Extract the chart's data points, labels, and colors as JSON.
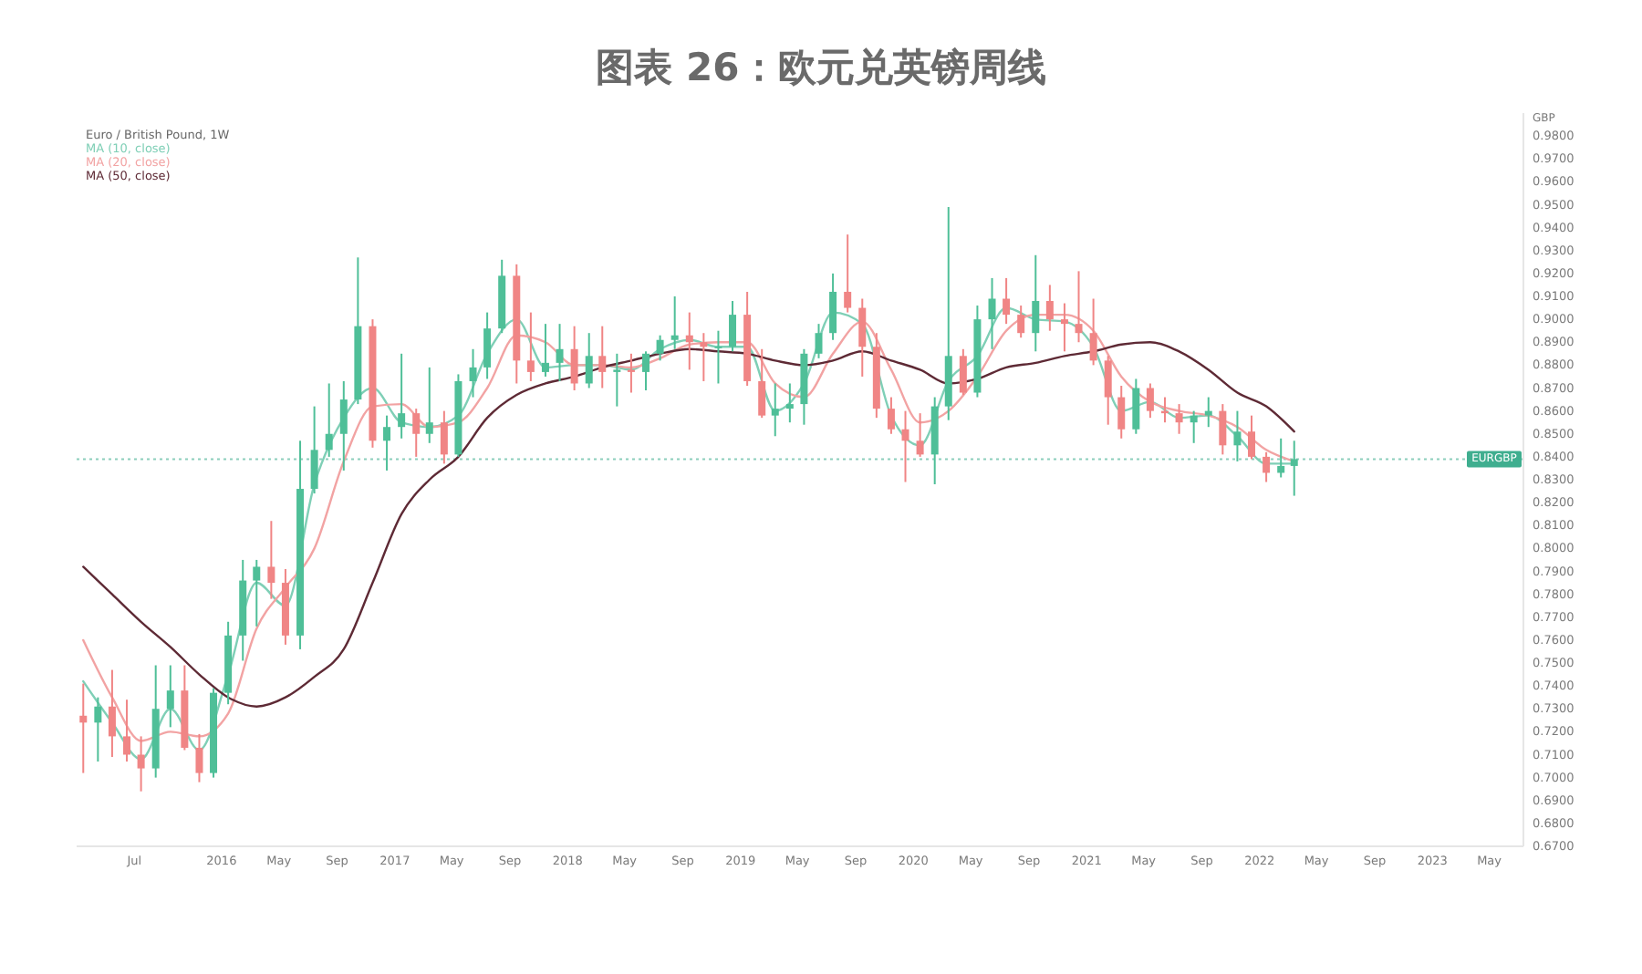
{
  "chart_data": {
    "type": "candlestick",
    "title": "图表 26：欧元兑英镑周线",
    "subtitle": "Euro / British Pound, 1W",
    "ylabel": "GBP",
    "x": [
      "2015-03-15",
      "2015-04-15",
      "2015-05-15",
      "2015-06-15",
      "2015-07-15",
      "2015-08-15",
      "2015-09-15",
      "2015-10-15",
      "2015-11-15",
      "2015-12-15",
      "2016-01-15",
      "2016-02-15",
      "2016-03-15",
      "2016-04-15",
      "2016-05-15",
      "2016-06-15",
      "2016-07-15",
      "2016-08-15",
      "2016-09-15",
      "2016-10-15",
      "2016-11-15",
      "2016-12-15",
      "2017-01-15",
      "2017-02-15",
      "2017-03-15",
      "2017-04-15",
      "2017-05-15",
      "2017-06-15",
      "2017-07-15",
      "2017-08-15",
      "2017-09-15",
      "2017-10-15",
      "2017-11-15",
      "2017-12-15",
      "2018-01-15",
      "2018-02-15",
      "2018-03-15",
      "2018-04-15",
      "2018-05-15",
      "2018-06-15",
      "2018-07-15",
      "2018-08-15",
      "2018-09-15",
      "2018-10-15",
      "2018-11-15",
      "2018-12-15",
      "2019-01-15",
      "2019-02-15",
      "2019-03-15",
      "2019-04-15",
      "2019-05-15",
      "2019-06-15",
      "2019-07-15",
      "2019-08-15",
      "2019-09-15",
      "2019-10-15",
      "2019-11-15",
      "2019-12-15",
      "2020-01-15",
      "2020-02-15",
      "2020-03-15",
      "2020-04-15",
      "2020-05-15",
      "2020-06-15",
      "2020-07-15",
      "2020-08-15",
      "2020-09-15",
      "2020-10-15",
      "2020-11-15",
      "2020-12-15",
      "2021-01-15",
      "2021-02-15",
      "2021-03-15",
      "2021-04-15",
      "2021-05-15",
      "2021-06-15",
      "2021-07-15",
      "2021-08-15",
      "2021-09-15",
      "2021-10-15",
      "2021-11-15",
      "2021-12-15",
      "2022-01-15",
      "2022-02-15",
      "2022-03-15"
    ],
    "ohlc": [
      [
        0.727,
        0.741,
        0.702,
        0.724
      ],
      [
        0.724,
        0.735,
        0.707,
        0.731
      ],
      [
        0.731,
        0.747,
        0.709,
        0.718
      ],
      [
        0.718,
        0.734,
        0.707,
        0.71
      ],
      [
        0.71,
        0.718,
        0.694,
        0.704
      ],
      [
        0.704,
        0.749,
        0.7,
        0.73
      ],
      [
        0.73,
        0.749,
        0.722,
        0.738
      ],
      [
        0.738,
        0.749,
        0.712,
        0.713
      ],
      [
        0.713,
        0.719,
        0.698,
        0.702
      ],
      [
        0.702,
        0.739,
        0.7,
        0.737
      ],
      [
        0.737,
        0.768,
        0.732,
        0.762
      ],
      [
        0.762,
        0.795,
        0.751,
        0.786
      ],
      [
        0.786,
        0.795,
        0.766,
        0.792
      ],
      [
        0.792,
        0.812,
        0.778,
        0.785
      ],
      [
        0.785,
        0.791,
        0.758,
        0.762
      ],
      [
        0.762,
        0.847,
        0.756,
        0.826
      ],
      [
        0.826,
        0.862,
        0.824,
        0.843
      ],
      [
        0.843,
        0.872,
        0.84,
        0.85
      ],
      [
        0.85,
        0.873,
        0.834,
        0.865
      ],
      [
        0.865,
        0.927,
        0.863,
        0.897
      ],
      [
        0.897,
        0.9,
        0.844,
        0.847
      ],
      [
        0.847,
        0.858,
        0.834,
        0.853
      ],
      [
        0.853,
        0.885,
        0.848,
        0.859
      ],
      [
        0.859,
        0.861,
        0.84,
        0.85
      ],
      [
        0.85,
        0.879,
        0.846,
        0.855
      ],
      [
        0.855,
        0.86,
        0.837,
        0.841
      ],
      [
        0.841,
        0.876,
        0.84,
        0.873
      ],
      [
        0.873,
        0.887,
        0.866,
        0.879
      ],
      [
        0.879,
        0.903,
        0.874,
        0.896
      ],
      [
        0.896,
        0.926,
        0.894,
        0.919
      ],
      [
        0.919,
        0.924,
        0.872,
        0.882
      ],
      [
        0.882,
        0.903,
        0.873,
        0.877
      ],
      [
        0.877,
        0.898,
        0.875,
        0.881
      ],
      [
        0.881,
        0.898,
        0.873,
        0.887
      ],
      [
        0.887,
        0.897,
        0.869,
        0.872
      ],
      [
        0.872,
        0.894,
        0.87,
        0.884
      ],
      [
        0.884,
        0.897,
        0.87,
        0.877
      ],
      [
        0.877,
        0.885,
        0.862,
        0.878
      ],
      [
        0.878,
        0.885,
        0.868,
        0.877
      ],
      [
        0.877,
        0.886,
        0.869,
        0.885
      ],
      [
        0.885,
        0.893,
        0.882,
        0.891
      ],
      [
        0.891,
        0.91,
        0.887,
        0.893
      ],
      [
        0.893,
        0.903,
        0.878,
        0.89
      ],
      [
        0.89,
        0.894,
        0.873,
        0.888
      ],
      [
        0.888,
        0.895,
        0.872,
        0.888
      ],
      [
        0.888,
        0.908,
        0.886,
        0.902
      ],
      [
        0.902,
        0.912,
        0.871,
        0.873
      ],
      [
        0.873,
        0.887,
        0.857,
        0.858
      ],
      [
        0.858,
        0.872,
        0.849,
        0.861
      ],
      [
        0.861,
        0.872,
        0.855,
        0.863
      ],
      [
        0.863,
        0.887,
        0.854,
        0.885
      ],
      [
        0.885,
        0.898,
        0.883,
        0.894
      ],
      [
        0.894,
        0.92,
        0.891,
        0.912
      ],
      [
        0.912,
        0.937,
        0.903,
        0.905
      ],
      [
        0.905,
        0.909,
        0.875,
        0.888
      ],
      [
        0.888,
        0.894,
        0.857,
        0.861
      ],
      [
        0.861,
        0.866,
        0.85,
        0.852
      ],
      [
        0.852,
        0.86,
        0.829,
        0.847
      ],
      [
        0.847,
        0.859,
        0.84,
        0.841
      ],
      [
        0.841,
        0.866,
        0.828,
        0.862
      ],
      [
        0.862,
        0.949,
        0.856,
        0.884
      ],
      [
        0.884,
        0.887,
        0.867,
        0.868
      ],
      [
        0.868,
        0.906,
        0.866,
        0.9
      ],
      [
        0.9,
        0.918,
        0.887,
        0.909
      ],
      [
        0.909,
        0.918,
        0.898,
        0.902
      ],
      [
        0.902,
        0.906,
        0.892,
        0.894
      ],
      [
        0.894,
        0.928,
        0.886,
        0.908
      ],
      [
        0.908,
        0.915,
        0.895,
        0.9
      ],
      [
        0.9,
        0.907,
        0.886,
        0.898
      ],
      [
        0.898,
        0.921,
        0.89,
        0.894
      ],
      [
        0.894,
        0.909,
        0.88,
        0.882
      ],
      [
        0.882,
        0.884,
        0.854,
        0.866
      ],
      [
        0.866,
        0.871,
        0.848,
        0.852
      ],
      [
        0.852,
        0.874,
        0.85,
        0.87
      ],
      [
        0.87,
        0.872,
        0.857,
        0.86
      ],
      [
        0.86,
        0.866,
        0.855,
        0.859
      ],
      [
        0.859,
        0.863,
        0.85,
        0.855
      ],
      [
        0.855,
        0.86,
        0.846,
        0.858
      ],
      [
        0.858,
        0.866,
        0.853,
        0.86
      ],
      [
        0.86,
        0.863,
        0.841,
        0.845
      ],
      [
        0.845,
        0.86,
        0.838,
        0.851
      ],
      [
        0.851,
        0.858,
        0.839,
        0.84
      ],
      [
        0.84,
        0.842,
        0.829,
        0.833
      ],
      [
        0.833,
        0.848,
        0.831,
        0.836
      ],
      [
        0.836,
        0.847,
        0.823,
        0.839
      ]
    ],
    "colors": [
      "#f08585",
      "#4fbf98",
      "#f08585",
      "#f08585",
      "#f08585",
      "#4fbf98",
      "#4fbf98",
      "#f08585",
      "#f08585",
      "#4fbf98",
      "#4fbf98",
      "#4fbf98",
      "#4fbf98",
      "#f08585",
      "#f08585",
      "#4fbf98",
      "#4fbf98",
      "#4fbf98",
      "#4fbf98",
      "#4fbf98",
      "#f08585",
      "#4fbf98",
      "#4fbf98",
      "#f08585",
      "#4fbf98",
      "#f08585",
      "#4fbf98",
      "#4fbf98",
      "#4fbf98",
      "#4fbf98",
      "#f08585",
      "#f08585",
      "#4fbf98",
      "#4fbf98",
      "#f08585",
      "#4fbf98",
      "#f08585",
      "#4fbf98",
      "#f08585",
      "#4fbf98",
      "#4fbf98",
      "#4fbf98",
      "#f08585",
      "#f08585",
      "#4fbf98",
      "#4fbf98",
      "#f08585",
      "#f08585",
      "#4fbf98",
      "#4fbf98",
      "#4fbf98",
      "#4fbf98",
      "#4fbf98",
      "#f08585",
      "#f08585",
      "#f08585",
      "#f08585",
      "#f08585",
      "#f08585",
      "#4fbf98",
      "#4fbf98",
      "#f08585",
      "#4fbf98",
      "#4fbf98",
      "#f08585",
      "#f08585",
      "#4fbf98",
      "#f08585",
      "#f08585",
      "#f08585",
      "#f08585",
      "#f08585",
      "#f08585",
      "#4fbf98",
      "#f08585",
      "#f08585",
      "#f08585",
      "#4fbf98",
      "#4fbf98",
      "#f08585",
      "#4fbf98",
      "#f08585",
      "#f08585",
      "#4fbf98",
      "#4fbf98"
    ],
    "series": [
      {
        "name": "MA (10, close)",
        "type": "line",
        "color": "#7fcfb6",
        "x": [
          "2015-03-15",
          "2015-05-15",
          "2015-07-15",
          "2015-09-15",
          "2015-11-15",
          "2016-01-15",
          "2016-03-15",
          "2016-05-15",
          "2016-07-15",
          "2016-09-15",
          "2016-11-15",
          "2017-01-15",
          "2017-03-15",
          "2017-05-15",
          "2017-07-15",
          "2017-09-15",
          "2017-11-15",
          "2018-01-15",
          "2018-03-15",
          "2018-05-15",
          "2018-07-15",
          "2018-09-15",
          "2018-11-15",
          "2019-01-15",
          "2019-03-15",
          "2019-05-15",
          "2019-07-15",
          "2019-09-15",
          "2019-11-15",
          "2020-01-15",
          "2020-03-15",
          "2020-05-15",
          "2020-07-15",
          "2020-09-15",
          "2020-11-15",
          "2021-01-15",
          "2021-03-15",
          "2021-05-15",
          "2021-07-15",
          "2021-09-15",
          "2021-11-15",
          "2022-01-15",
          "2022-03-15"
        ],
        "values": [
          0.742,
          0.724,
          0.708,
          0.73,
          0.712,
          0.745,
          0.785,
          0.775,
          0.828,
          0.857,
          0.87,
          0.855,
          0.853,
          0.858,
          0.885,
          0.9,
          0.879,
          0.88,
          0.88,
          0.878,
          0.887,
          0.891,
          0.888,
          0.888,
          0.86,
          0.872,
          0.903,
          0.898,
          0.858,
          0.845,
          0.873,
          0.884,
          0.905,
          0.9,
          0.899,
          0.888,
          0.86,
          0.864,
          0.857,
          0.858,
          0.849,
          0.837,
          0.837
        ]
      },
      {
        "name": "MA (20, close)",
        "type": "line",
        "color": "#f2a3a3",
        "x": [
          "2015-03-15",
          "2015-05-15",
          "2015-07-15",
          "2015-09-15",
          "2015-11-15",
          "2016-01-15",
          "2016-03-15",
          "2016-05-15",
          "2016-07-15",
          "2016-09-15",
          "2016-11-15",
          "2017-01-15",
          "2017-03-15",
          "2017-05-15",
          "2017-07-15",
          "2017-09-15",
          "2017-11-15",
          "2018-01-15",
          "2018-03-15",
          "2018-05-15",
          "2018-07-15",
          "2018-09-15",
          "2018-11-15",
          "2019-01-15",
          "2019-03-15",
          "2019-05-15",
          "2019-07-15",
          "2019-09-15",
          "2019-11-15",
          "2020-01-15",
          "2020-03-15",
          "2020-05-15",
          "2020-07-15",
          "2020-09-15",
          "2020-11-15",
          "2021-01-15",
          "2021-03-15",
          "2021-05-15",
          "2021-07-15",
          "2021-09-15",
          "2021-11-15",
          "2022-01-15",
          "2022-03-15"
        ],
        "values": [
          0.76,
          0.735,
          0.716,
          0.72,
          0.718,
          0.728,
          0.765,
          0.783,
          0.8,
          0.838,
          0.862,
          0.863,
          0.853,
          0.855,
          0.87,
          0.893,
          0.89,
          0.88,
          0.88,
          0.879,
          0.883,
          0.889,
          0.89,
          0.89,
          0.872,
          0.866,
          0.885,
          0.899,
          0.878,
          0.855,
          0.86,
          0.875,
          0.895,
          0.902,
          0.902,
          0.895,
          0.875,
          0.864,
          0.86,
          0.858,
          0.853,
          0.843,
          0.838
        ]
      },
      {
        "name": "MA (50, close)",
        "type": "line",
        "color": "#5e2a35",
        "x": [
          "2015-03-15",
          "2015-05-15",
          "2015-07-15",
          "2015-09-15",
          "2015-11-15",
          "2016-01-15",
          "2016-03-15",
          "2016-05-15",
          "2016-07-15",
          "2016-09-15",
          "2016-11-15",
          "2017-01-15",
          "2017-03-15",
          "2017-05-15",
          "2017-07-15",
          "2017-09-15",
          "2017-11-15",
          "2018-01-15",
          "2018-03-15",
          "2018-05-15",
          "2018-07-15",
          "2018-09-15",
          "2018-11-15",
          "2019-01-15",
          "2019-03-15",
          "2019-05-15",
          "2019-07-15",
          "2019-09-15",
          "2019-11-15",
          "2020-01-15",
          "2020-03-15",
          "2020-05-15",
          "2020-07-15",
          "2020-09-15",
          "2020-11-15",
          "2021-01-15",
          "2021-03-15",
          "2021-05-15",
          "2021-07-15",
          "2021-09-15",
          "2021-11-15",
          "2022-01-15",
          "2022-03-15"
        ],
        "values": [
          0.792,
          0.78,
          0.768,
          0.757,
          0.745,
          0.735,
          0.731,
          0.735,
          0.744,
          0.756,
          0.785,
          0.815,
          0.83,
          0.84,
          0.857,
          0.867,
          0.872,
          0.875,
          0.879,
          0.882,
          0.885,
          0.887,
          0.886,
          0.885,
          0.882,
          0.88,
          0.882,
          0.886,
          0.882,
          0.878,
          0.872,
          0.874,
          0.879,
          0.881,
          0.884,
          0.886,
          0.889,
          0.89,
          0.886,
          0.878,
          0.868,
          0.862,
          0.851
        ]
      }
    ],
    "xlim": [
      "2015-03-01",
      "2023-07-12"
    ],
    "xticks": [
      {
        "value": "2015-07-01",
        "label": "Jul"
      },
      {
        "value": "2016-01-01",
        "label": "2016"
      },
      {
        "value": "2016-05-01",
        "label": "May"
      },
      {
        "value": "2016-09-01",
        "label": "Sep"
      },
      {
        "value": "2017-01-01",
        "label": "2017"
      },
      {
        "value": "2017-05-01",
        "label": "May"
      },
      {
        "value": "2017-09-01",
        "label": "Sep"
      },
      {
        "value": "2018-01-01",
        "label": "2018"
      },
      {
        "value": "2018-05-01",
        "label": "May"
      },
      {
        "value": "2018-09-01",
        "label": "Sep"
      },
      {
        "value": "2019-01-01",
        "label": "2019"
      },
      {
        "value": "2019-05-01",
        "label": "May"
      },
      {
        "value": "2019-09-01",
        "label": "Sep"
      },
      {
        "value": "2020-01-01",
        "label": "2020"
      },
      {
        "value": "2020-05-01",
        "label": "May"
      },
      {
        "value": "2020-09-01",
        "label": "Sep"
      },
      {
        "value": "2021-01-01",
        "label": "2021"
      },
      {
        "value": "2021-05-01",
        "label": "May"
      },
      {
        "value": "2021-09-01",
        "label": "Sep"
      },
      {
        "value": "2022-01-01",
        "label": "2022"
      },
      {
        "value": "2022-05-01",
        "label": "May"
      },
      {
        "value": "2022-09-01",
        "label": "Sep"
      },
      {
        "value": "2023-01-01",
        "label": "2023"
      },
      {
        "value": "2023-05-01",
        "label": "May"
      }
    ],
    "ylim": [
      0.67,
      0.99
    ],
    "yticks": [
      {
        "value": 0.67,
        "label": "0.6700"
      },
      {
        "value": 0.68,
        "label": "0.6800"
      },
      {
        "value": 0.69,
        "label": "0.6900"
      },
      {
        "value": 0.7,
        "label": "0.7000"
      },
      {
        "value": 0.71,
        "label": "0.7100"
      },
      {
        "value": 0.72,
        "label": "0.7200"
      },
      {
        "value": 0.73,
        "label": "0.7300"
      },
      {
        "value": 0.74,
        "label": "0.7400"
      },
      {
        "value": 0.75,
        "label": "0.7500"
      },
      {
        "value": 0.76,
        "label": "0.7600"
      },
      {
        "value": 0.77,
        "label": "0.7700"
      },
      {
        "value": 0.78,
        "label": "0.7800"
      },
      {
        "value": 0.79,
        "label": "0.7900"
      },
      {
        "value": 0.8,
        "label": "0.8000"
      },
      {
        "value": 0.81,
        "label": "0.8100"
      },
      {
        "value": 0.82,
        "label": "0.8200"
      },
      {
        "value": 0.83,
        "label": "0.8300"
      },
      {
        "value": 0.84,
        "label": "0.8400"
      },
      {
        "value": 0.85,
        "label": "0.8500"
      },
      {
        "value": 0.86,
        "label": "0.8600"
      },
      {
        "value": 0.87,
        "label": "0.8700"
      },
      {
        "value": 0.88,
        "label": "0.8800"
      },
      {
        "value": 0.89,
        "label": "0.8900"
      },
      {
        "value": 0.9,
        "label": "0.9000"
      },
      {
        "value": 0.91,
        "label": "0.9100"
      },
      {
        "value": 0.92,
        "label": "0.9200"
      },
      {
        "value": 0.93,
        "label": "0.9300"
      },
      {
        "value": 0.94,
        "label": "0.9400"
      },
      {
        "value": 0.95,
        "label": "0.9500"
      },
      {
        "value": 0.96,
        "label": "0.9600"
      },
      {
        "value": 0.97,
        "label": "0.9700"
      },
      {
        "value": 0.98,
        "label": "0.9800"
      }
    ],
    "ref_lines": [
      {
        "axis": "y",
        "value": 0.839,
        "label": "EURGBP",
        "color": "#3fae8f",
        "line_style": "dotted"
      }
    ],
    "legend": "top left"
  }
}
